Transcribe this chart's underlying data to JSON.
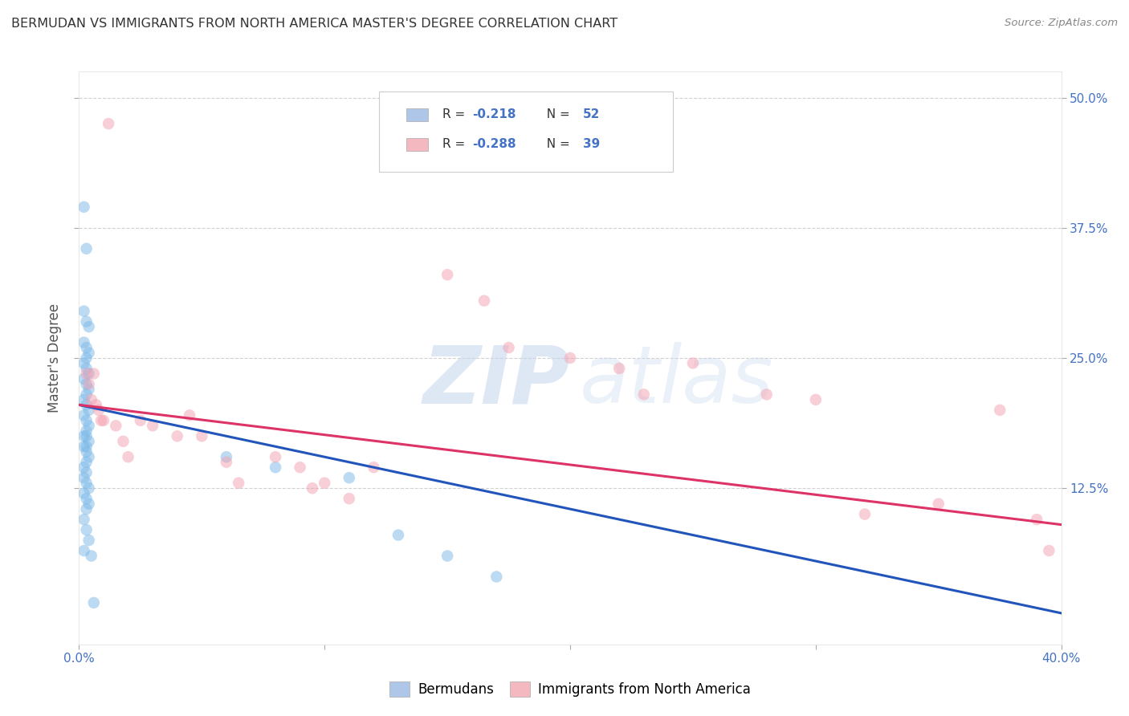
{
  "title": "BERMUDAN VS IMMIGRANTS FROM NORTH AMERICA MASTER'S DEGREE CORRELATION CHART",
  "source": "Source: ZipAtlas.com",
  "ylabel": "Master's Degree",
  "ylabel_right_labels": [
    "50.0%",
    "37.5%",
    "25.0%",
    "12.5%"
  ],
  "ylabel_right_values": [
    0.5,
    0.375,
    0.25,
    0.125
  ],
  "x_min": 0.0,
  "x_max": 0.4,
  "y_min": -0.025,
  "y_max": 0.525,
  "legend_color1": "#aec6e8",
  "legend_color2": "#f4b8c1",
  "watermark_zip": "ZIP",
  "watermark_atlas": "atlas",
  "blue_dot_color": "#7ab8e8",
  "pink_dot_color": "#f4a0b0",
  "blue_line_color": "#2255bb",
  "pink_line_color": "#dd3366",
  "blue_x": [
    0.002,
    0.003,
    0.002,
    0.003,
    0.004,
    0.002,
    0.003,
    0.004,
    0.003,
    0.002,
    0.003,
    0.004,
    0.002,
    0.003,
    0.004,
    0.003,
    0.002,
    0.003,
    0.004,
    0.002,
    0.003,
    0.004,
    0.003,
    0.002,
    0.003,
    0.004,
    0.003,
    0.002,
    0.003,
    0.004,
    0.003,
    0.002,
    0.003,
    0.002,
    0.003,
    0.004,
    0.002,
    0.003,
    0.004,
    0.003,
    0.002,
    0.003,
    0.004,
    0.002,
    0.06,
    0.08,
    0.11,
    0.13,
    0.15,
    0.17,
    0.005,
    0.006
  ],
  "blue_y": [
    0.395,
    0.355,
    0.295,
    0.285,
    0.28,
    0.265,
    0.26,
    0.255,
    0.25,
    0.245,
    0.24,
    0.235,
    0.23,
    0.225,
    0.22,
    0.215,
    0.21,
    0.205,
    0.2,
    0.195,
    0.19,
    0.185,
    0.18,
    0.175,
    0.175,
    0.17,
    0.165,
    0.165,
    0.16,
    0.155,
    0.15,
    0.145,
    0.14,
    0.135,
    0.13,
    0.125,
    0.12,
    0.115,
    0.11,
    0.105,
    0.095,
    0.085,
    0.075,
    0.065,
    0.155,
    0.145,
    0.135,
    0.08,
    0.06,
    0.04,
    0.06,
    0.015
  ],
  "pink_x": [
    0.003,
    0.004,
    0.005,
    0.006,
    0.007,
    0.008,
    0.009,
    0.01,
    0.012,
    0.015,
    0.018,
    0.02,
    0.025,
    0.03,
    0.04,
    0.045,
    0.05,
    0.06,
    0.065,
    0.08,
    0.09,
    0.095,
    0.1,
    0.11,
    0.12,
    0.15,
    0.165,
    0.175,
    0.2,
    0.22,
    0.23,
    0.25,
    0.28,
    0.3,
    0.32,
    0.35,
    0.375,
    0.39,
    0.395
  ],
  "pink_y": [
    0.235,
    0.225,
    0.21,
    0.235,
    0.205,
    0.2,
    0.19,
    0.19,
    0.475,
    0.185,
    0.17,
    0.155,
    0.19,
    0.185,
    0.175,
    0.195,
    0.175,
    0.15,
    0.13,
    0.155,
    0.145,
    0.125,
    0.13,
    0.115,
    0.145,
    0.33,
    0.305,
    0.26,
    0.25,
    0.24,
    0.215,
    0.245,
    0.215,
    0.21,
    0.1,
    0.11,
    0.2,
    0.095,
    0.065
  ],
  "blue_trend_start_y": 0.205,
  "blue_trend_end_y": 0.005,
  "pink_trend_start_y": 0.205,
  "pink_trend_end_y": 0.09,
  "dot_size": 110,
  "dot_alpha": 0.5,
  "grid_color": "#cccccc",
  "background_color": "#ffffff",
  "title_color": "#333333",
  "axis_label_color": "#4472c4"
}
